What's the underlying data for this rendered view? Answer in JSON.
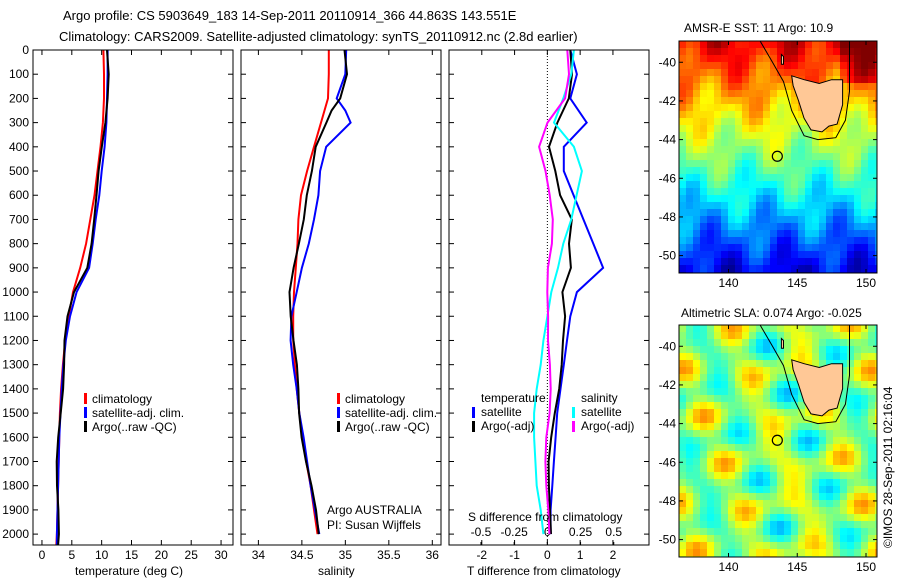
{
  "header": {
    "title_line1": "Argo profile: CS 5903649_183 14-Sep-2011 20110914_366 44.863S 143.551E",
    "title_line2": "Climatology: CARS2009. Satellite-adjusted climatology: synTS_20110912.nc (2.8d earlier)"
  },
  "colors": {
    "climatology": "#ff0000",
    "satellite": "#0000ff",
    "argo": "#000000",
    "sal_satellite": "#00ffff",
    "sal_argo": "#ff00ff",
    "land": "#ffc896"
  },
  "chart_data": [
    {
      "type": "line",
      "id": "temperature",
      "xlabel": "temperature (deg C)",
      "ylabel": "depth",
      "xlim": [
        -1.5,
        32
      ],
      "ylim": [
        2130,
        0
      ],
      "xticks": [
        0,
        5,
        10,
        15,
        20,
        25,
        30
      ],
      "yticks": [
        0,
        100,
        200,
        300,
        400,
        500,
        600,
        700,
        800,
        900,
        1000,
        1100,
        1200,
        1300,
        1400,
        1500,
        1600,
        1700,
        1800,
        1900,
        2000
      ],
      "legend": [
        "climatology",
        "satellite-adj. clim.",
        "Argo(..raw -QC)"
      ],
      "depth": [
        0,
        100,
        200,
        300,
        400,
        500,
        600,
        700,
        800,
        900,
        1000,
        1100,
        1200,
        1300,
        1400,
        1500,
        1600,
        1700,
        1800,
        1900,
        2000,
        2060
      ],
      "series": [
        {
          "name": "climatology",
          "color": "#ff0000",
          "values": [
            10.3,
            10.4,
            10.4,
            10.2,
            9.8,
            9.3,
            8.8,
            8.1,
            7.4,
            6.4,
            5.2,
            4.5,
            3.9,
            3.5,
            3.2,
            3.0,
            2.9,
            2.8,
            2.7,
            2.6,
            2.5,
            2.4
          ]
        },
        {
          "name": "satellite-adj. clim.",
          "color": "#0000ff",
          "values": [
            11.0,
            11.0,
            10.9,
            10.8,
            10.5,
            10.0,
            9.6,
            9.0,
            8.5,
            7.9,
            5.8,
            4.7,
            4.0,
            3.6,
            3.3,
            3.1,
            2.9,
            2.8,
            2.7,
            2.6,
            2.5,
            2.5
          ]
        },
        {
          "name": "Argo(..raw -QC)",
          "color": "#000000",
          "values": [
            10.9,
            10.9,
            10.7,
            10.6,
            10.3,
            9.8,
            9.2,
            8.5,
            8.0,
            7.5,
            5.6,
            4.6,
            3.9,
            3.5,
            3.2,
            3.0,
            2.9,
            2.8,
            2.7,
            2.6,
            2.5,
            2.5
          ]
        }
      ]
    },
    {
      "type": "line",
      "id": "salinity",
      "xlabel": "salinity",
      "xlim": [
        33.8,
        36.1
      ],
      "ylim": [
        2130,
        0
      ],
      "xticks": [
        34,
        34.5,
        35,
        35.5,
        36
      ],
      "legend": [
        "climatology",
        "satellite-adj. clim.",
        "Argo(..raw -QC)"
      ],
      "annotation": [
        "Argo AUSTRALIA",
        "PI: Susan Wijffels"
      ],
      "depth": [
        0,
        100,
        200,
        250,
        300,
        400,
        500,
        600,
        700,
        800,
        900,
        1000,
        1100,
        1200,
        1300,
        1400,
        1500,
        1600,
        1700,
        1800,
        1900,
        2000
      ],
      "series": [
        {
          "name": "climatology",
          "color": "#ff0000",
          "values": [
            34.81,
            34.81,
            34.8,
            34.76,
            34.72,
            34.64,
            34.56,
            34.49,
            34.46,
            34.45,
            34.43,
            34.41,
            34.4,
            34.4,
            34.42,
            34.44,
            34.47,
            34.51,
            34.55,
            34.6,
            34.64,
            34.68
          ]
        },
        {
          "name": "satellite-adj. clim.",
          "color": "#0000ff",
          "values": [
            35.01,
            35.0,
            34.9,
            35.0,
            35.06,
            34.78,
            34.71,
            34.69,
            34.64,
            34.58,
            34.5,
            34.44,
            34.38,
            34.37,
            34.4,
            34.44,
            34.47,
            34.52,
            34.56,
            34.6,
            34.65,
            34.7
          ]
        },
        {
          "name": "Argo(..raw -QC)",
          "color": "#000000",
          "values": [
            34.99,
            35.0,
            34.92,
            34.84,
            34.8,
            34.68,
            34.62,
            34.54,
            34.5,
            34.46,
            34.42,
            34.38,
            34.38,
            34.39,
            34.42,
            34.45,
            34.48,
            34.52,
            34.56,
            34.6,
            34.64,
            34.68
          ]
        }
      ]
    },
    {
      "type": "line",
      "id": "difference",
      "xlabel": "T difference from climatology",
      "x2label": "S difference from climatology",
      "xlim": [
        -3,
        3.1
      ],
      "xticks": [
        -2,
        -1,
        0,
        1,
        2
      ],
      "x2ticks": [
        -0.5,
        -0.25,
        0,
        0.25,
        0.5
      ],
      "x2ticklabels": [
        "-0.5",
        "-0.25",
        "0",
        "0.25",
        "0.5"
      ],
      "ylim": [
        2130,
        0
      ],
      "legend": {
        "temperature_title": "temperature",
        "salinity_title": "salinity",
        "items": [
          "satellite",
          "Argo(-adj)",
          "satellite",
          "Argo(-adj)"
        ]
      },
      "depth": [
        0,
        100,
        200,
        300,
        400,
        500,
        600,
        700,
        800,
        900,
        1000,
        1100,
        1200,
        1300,
        1400,
        1500,
        1600,
        1700,
        1800,
        1900,
        2000
      ],
      "series": [
        {
          "name": "T satellite",
          "color": "#0000ff",
          "axis": "T",
          "values": [
            0.7,
            0.9,
            0.7,
            1.2,
            0.5,
            0.5,
            0.8,
            1.1,
            1.4,
            1.7,
            0.9,
            0.7,
            0.6,
            0.5,
            0.4,
            0.3,
            0.25,
            0.2,
            0.15,
            0.1,
            0.1
          ]
        },
        {
          "name": "T Argo(-adj)",
          "color": "#000000",
          "axis": "T",
          "values": [
            0.7,
            0.7,
            0.6,
            0.3,
            0.1,
            0.3,
            0.4,
            0.7,
            0.6,
            0.7,
            0.5,
            0.6,
            0.5,
            0.4,
            0.3,
            0.2,
            0.15,
            0.1,
            0.08,
            0.05,
            0.05
          ]
        },
        {
          "name": "S satellite",
          "color": "#00ffff",
          "axis": "S",
          "values": [
            0.2,
            0.18,
            0.12,
            0.05,
            0.2,
            0.26,
            0.22,
            0.18,
            0.12,
            0.08,
            0.03,
            0.0,
            -0.03,
            -0.05,
            -0.08,
            -0.1,
            -0.1,
            -0.09,
            -0.08,
            -0.05,
            -0.03
          ]
        },
        {
          "name": "S Argo(-adj)",
          "color": "#ff00ff",
          "axis": "S",
          "values": [
            0.15,
            0.15,
            0.12,
            0.0,
            -0.05,
            0.0,
            0.02,
            0.03,
            0.02,
            0.0,
            0.01,
            0.02,
            0.01,
            0.01,
            0.01,
            0.01,
            0.0,
            0.0,
            0.0,
            0.0,
            0.0
          ]
        }
      ]
    },
    {
      "type": "heatmap",
      "id": "sst-map",
      "title": "AMSR-E SST: 11 Argo: 10.9",
      "xlim": [
        136.4,
        150.8
      ],
      "ylim": [
        -50.9,
        -38.9
      ],
      "xticks": [
        140,
        145,
        150
      ],
      "yticks": [
        -40,
        -42,
        -44,
        -46,
        -48,
        -50
      ],
      "argo_position": [
        143.551,
        -44.863
      ]
    },
    {
      "type": "heatmap",
      "id": "sla-map",
      "title": "Altimetric SLA: 0.074 Argo: -0.025",
      "xlim": [
        136.4,
        150.8
      ],
      "ylim": [
        -50.9,
        -38.9
      ],
      "xticks": [
        140,
        145,
        150
      ],
      "yticks": [
        -40,
        -42,
        -44,
        -46,
        -48,
        -50
      ],
      "argo_position": [
        143.551,
        -44.863
      ]
    }
  ],
  "credit": "©IMOS 28-Sep-2011 02:16:04"
}
